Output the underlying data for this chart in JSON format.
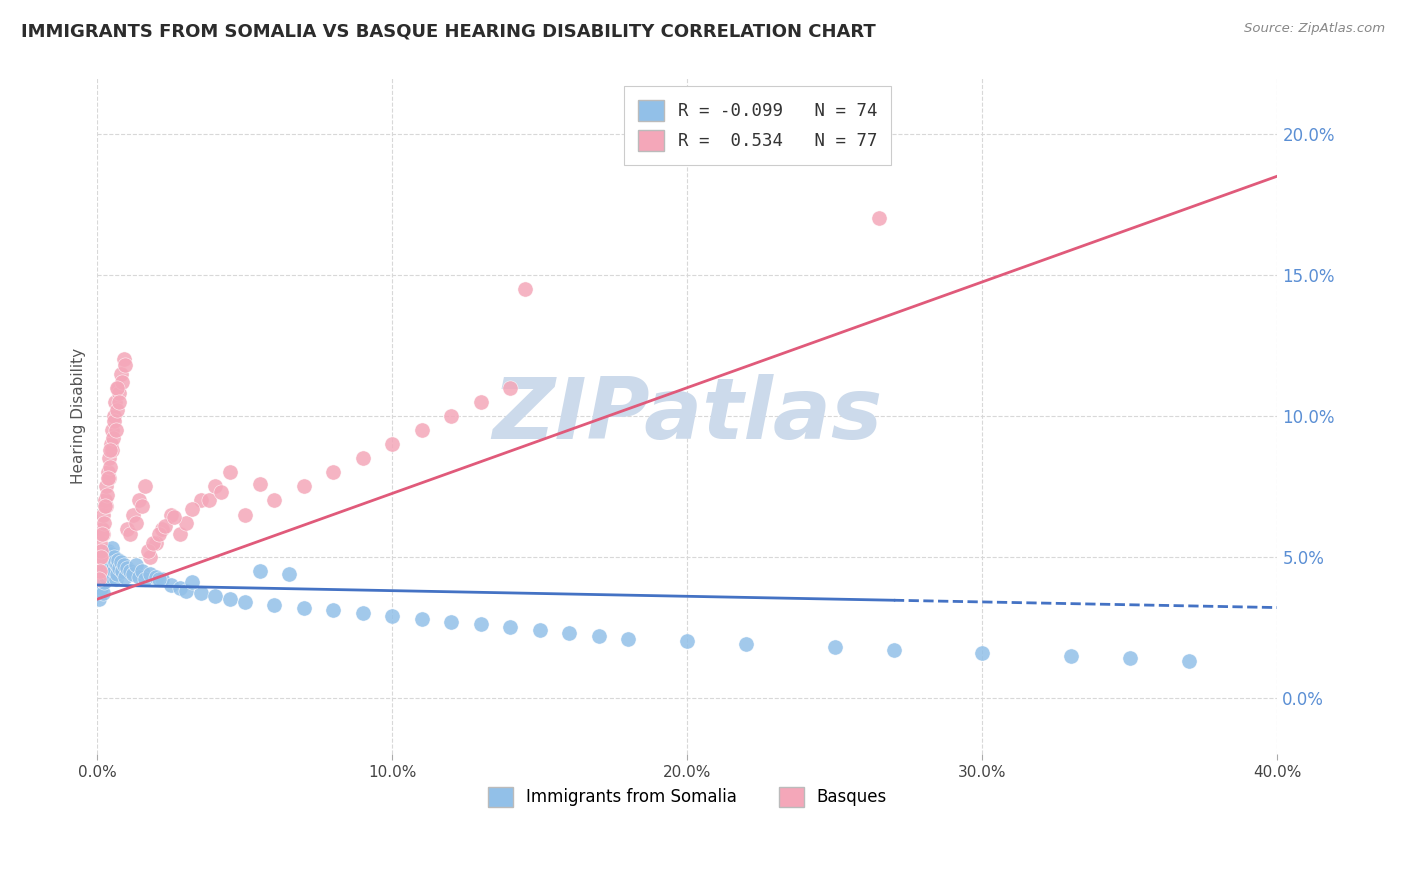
{
  "title": "IMMIGRANTS FROM SOMALIA VS BASQUE HEARING DISABILITY CORRELATION CHART",
  "source": "Source: ZipAtlas.com",
  "ylabel": "Hearing Disability",
  "series": [
    {
      "name": "Immigrants from Somalia",
      "color": "#92c0e8",
      "R": -0.099,
      "N": 74,
      "line_color": "#4472c4",
      "line_style": "dashed"
    },
    {
      "name": "Basques",
      "color": "#f4a7b9",
      "R": 0.534,
      "N": 77,
      "line_color": "#e05a7a",
      "line_style": "solid"
    }
  ],
  "xlim": [
    0.0,
    40.0
  ],
  "ylim": [
    -2.0,
    22.0
  ],
  "yticks": [
    0.0,
    5.0,
    10.0,
    15.0,
    20.0
  ],
  "xticks": [
    0.0,
    10.0,
    20.0,
    30.0,
    40.0
  ],
  "background_color": "#ffffff",
  "watermark": "ZIPatlas",
  "watermark_color": "#ccdaeb",
  "grid_color": "#d8d8d8",
  "somalia_x": [
    0.05,
    0.08,
    0.1,
    0.12,
    0.15,
    0.18,
    0.2,
    0.22,
    0.25,
    0.28,
    0.3,
    0.32,
    0.35,
    0.38,
    0.4,
    0.42,
    0.45,
    0.48,
    0.5,
    0.52,
    0.55,
    0.58,
    0.6,
    0.62,
    0.65,
    0.68,
    0.7,
    0.75,
    0.8,
    0.85,
    0.9,
    0.95,
    1.0,
    1.1,
    1.2,
    1.3,
    1.4,
    1.5,
    1.6,
    1.8,
    2.0,
    2.2,
    2.5,
    2.8,
    3.0,
    3.5,
    4.0,
    4.5,
    5.0,
    6.0,
    7.0,
    8.0,
    9.0,
    10.0,
    11.0,
    12.0,
    13.0,
    14.0,
    15.0,
    16.0,
    17.0,
    18.0,
    20.0,
    22.0,
    25.0,
    27.0,
    30.0,
    33.0,
    35.0,
    37.0,
    5.5,
    6.5,
    3.2,
    2.1
  ],
  "somalia_y": [
    3.5,
    3.8,
    4.0,
    3.9,
    4.2,
    3.7,
    4.5,
    4.1,
    5.0,
    4.3,
    4.8,
    4.6,
    5.2,
    4.4,
    4.9,
    4.7,
    5.1,
    4.3,
    5.3,
    4.6,
    5.0,
    4.5,
    4.8,
    4.2,
    4.7,
    4.4,
    4.9,
    4.6,
    4.8,
    4.5,
    4.7,
    4.3,
    4.6,
    4.5,
    4.4,
    4.7,
    4.3,
    4.5,
    4.2,
    4.4,
    4.3,
    4.2,
    4.0,
    3.9,
    3.8,
    3.7,
    3.6,
    3.5,
    3.4,
    3.3,
    3.2,
    3.1,
    3.0,
    2.9,
    2.8,
    2.7,
    2.6,
    2.5,
    2.4,
    2.3,
    2.2,
    2.1,
    2.0,
    1.9,
    1.8,
    1.7,
    1.6,
    1.5,
    1.4,
    1.3,
    4.5,
    4.4,
    4.1,
    4.2
  ],
  "basque_x": [
    0.05,
    0.08,
    0.1,
    0.12,
    0.15,
    0.18,
    0.2,
    0.22,
    0.25,
    0.28,
    0.3,
    0.32,
    0.35,
    0.38,
    0.4,
    0.42,
    0.45,
    0.48,
    0.5,
    0.52,
    0.55,
    0.58,
    0.6,
    0.65,
    0.7,
    0.75,
    0.8,
    0.85,
    0.9,
    0.95,
    1.0,
    1.1,
    1.2,
    1.3,
    1.4,
    1.5,
    1.6,
    1.8,
    2.0,
    2.2,
    2.5,
    2.8,
    3.0,
    3.5,
    4.0,
    4.5,
    5.0,
    6.0,
    7.0,
    8.0,
    1.7,
    1.9,
    2.1,
    2.3,
    2.6,
    3.2,
    3.8,
    4.2,
    5.5,
    0.68,
    0.72,
    0.62,
    0.44,
    0.36,
    0.27,
    0.17,
    0.13,
    0.09,
    0.07,
    9.0,
    10.0,
    11.0,
    12.0,
    13.0,
    14.0,
    14.5,
    26.5
  ],
  "basque_y": [
    4.5,
    5.0,
    5.5,
    5.2,
    6.0,
    5.8,
    6.5,
    6.2,
    7.0,
    6.8,
    7.5,
    7.2,
    8.0,
    7.8,
    8.5,
    8.2,
    9.0,
    8.8,
    9.5,
    9.2,
    10.0,
    9.8,
    10.5,
    10.2,
    11.0,
    10.8,
    11.5,
    11.2,
    12.0,
    11.8,
    6.0,
    5.8,
    6.5,
    6.2,
    7.0,
    6.8,
    7.5,
    5.0,
    5.5,
    6.0,
    6.5,
    5.8,
    6.2,
    7.0,
    7.5,
    8.0,
    6.5,
    7.0,
    7.5,
    8.0,
    5.2,
    5.5,
    5.8,
    6.1,
    6.4,
    6.7,
    7.0,
    7.3,
    7.6,
    11.0,
    10.5,
    9.5,
    8.8,
    7.8,
    6.8,
    5.8,
    5.0,
    4.5,
    4.2,
    8.5,
    9.0,
    9.5,
    10.0,
    10.5,
    11.0,
    14.5,
    17.0
  ],
  "somalia_line_x": [
    0.0,
    40.0
  ],
  "somalia_line_y": [
    4.0,
    3.2
  ],
  "basque_line_x": [
    0.0,
    40.0
  ],
  "basque_line_y": [
    3.5,
    18.5
  ]
}
